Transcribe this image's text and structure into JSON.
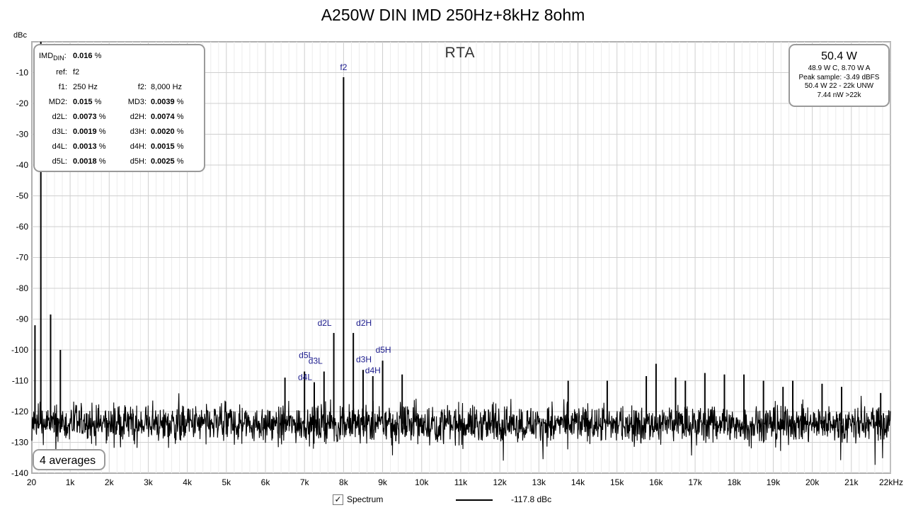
{
  "chart_data": {
    "type": "line",
    "title": "A250W DIN IMD 250Hz+8kHz 8ohm",
    "ylabel": "dBc",
    "xlabel": "",
    "xlim": [
      20,
      22000
    ],
    "ylim": [
      -140,
      0
    ],
    "x_ticks": [
      "20",
      "1k",
      "2k",
      "3k",
      "4k",
      "5k",
      "6k",
      "7k",
      "8k",
      "9k",
      "10k",
      "11k",
      "12k",
      "13k",
      "14k",
      "15k",
      "16k",
      "17k",
      "18k",
      "19k",
      "20k",
      "21k",
      "22kHz"
    ],
    "y_ticks": [
      "-10",
      "-20",
      "-30",
      "-40",
      "-50",
      "-60",
      "-70",
      "-80",
      "-90",
      "-100",
      "-110",
      "-120",
      "-130",
      "-140"
    ],
    "grid": true,
    "noise_floor_dbc": -124,
    "series": [
      {
        "name": "Spectrum",
        "color": "#000000",
        "spikes": [
          {
            "x": 250,
            "y": 0
          },
          {
            "x": 100,
            "y": -92
          },
          {
            "x": 500,
            "y": -88.5
          },
          {
            "x": 750,
            "y": -100
          },
          {
            "x": 6500,
            "y": -109
          },
          {
            "x": 7000,
            "y": -107
          },
          {
            "x": 7250,
            "y": -110.5
          },
          {
            "x": 7500,
            "y": -107
          },
          {
            "x": 7750,
            "y": -94.5
          },
          {
            "x": 8000,
            "y": -11.5
          },
          {
            "x": 8250,
            "y": -94.5
          },
          {
            "x": 8500,
            "y": -106.5
          },
          {
            "x": 8750,
            "y": -108.5
          },
          {
            "x": 9000,
            "y": -103.5
          },
          {
            "x": 9500,
            "y": -108
          },
          {
            "x": 13750,
            "y": -110
          },
          {
            "x": 14750,
            "y": -110
          },
          {
            "x": 15750,
            "y": -108.5
          },
          {
            "x": 16000,
            "y": -104.5
          },
          {
            "x": 16500,
            "y": -109
          },
          {
            "x": 16750,
            "y": -110
          },
          {
            "x": 17250,
            "y": -107.5
          },
          {
            "x": 17750,
            "y": -108
          },
          {
            "x": 18250,
            "y": -108
          },
          {
            "x": 18750,
            "y": -110
          },
          {
            "x": 19250,
            "y": -112
          },
          {
            "x": 19500,
            "y": -110
          },
          {
            "x": 20250,
            "y": -111
          },
          {
            "x": 20750,
            "y": -112
          },
          {
            "x": 21750,
            "y": -114
          }
        ]
      }
    ],
    "annotations": [
      {
        "text": "f2",
        "x": 8000,
        "y": -11.5
      },
      {
        "text": "d2L",
        "x": 7750,
        "y": -94.5
      },
      {
        "text": "d2H",
        "x": 8250,
        "y": -94.5
      },
      {
        "text": "d3L",
        "x": 7500,
        "y": -107
      },
      {
        "text": "d3H",
        "x": 8500,
        "y": -106.5
      },
      {
        "text": "d4L",
        "x": 7250,
        "y": -110.5
      },
      {
        "text": "d4H",
        "x": 8750,
        "y": -108.5
      },
      {
        "text": "d5L",
        "x": 7000,
        "y": -107
      },
      {
        "text": "d5H",
        "x": 9000,
        "y": -103.5
      }
    ],
    "annotation_color": "#1a1a8c"
  },
  "plot": {
    "rta_label": "RTA",
    "averages": "4 averages",
    "legend": {
      "checked": "✓",
      "label": "Spectrum",
      "value": "-117.8 dBc"
    }
  },
  "imd": {
    "imd_label": "IMD",
    "imd_sub": "DIN",
    "imd_value": "0.016",
    "imd_unit": "%",
    "ref_label": "ref:",
    "ref_value": "f2",
    "f1_label": "f1:",
    "f1_value": "250 Hz",
    "f2_label": "f2:",
    "f2_value": "8,000 Hz",
    "md2_label": "MD2:",
    "md2_value": "0.015",
    "md3_label": "MD3:",
    "md3_value": "0.0039",
    "d2l_label": "d2L:",
    "d2l_value": "0.0073",
    "d2h_label": "d2H:",
    "d2h_value": "0.0074",
    "d3l_label": "d3L:",
    "d3l_value": "0.0019",
    "d3h_label": "d3H:",
    "d3h_value": "0.0020",
    "d4l_label": "d4L:",
    "d4l_value": "0.0013",
    "d4h_label": "d4H:",
    "d4h_value": "0.0015",
    "d5l_label": "d5L:",
    "d5l_value": "0.0018",
    "d5h_label": "d5H:",
    "d5h_value": "0.0025",
    "pct": "%"
  },
  "power": {
    "main": "50.4 W",
    "line1": "48.9 W C, 8.70 W A",
    "line2": "Peak sample: -3.49 dBFS",
    "line3": "50.4 W 22 - 22k UNW",
    "line4": "7.44 nW >22k"
  }
}
